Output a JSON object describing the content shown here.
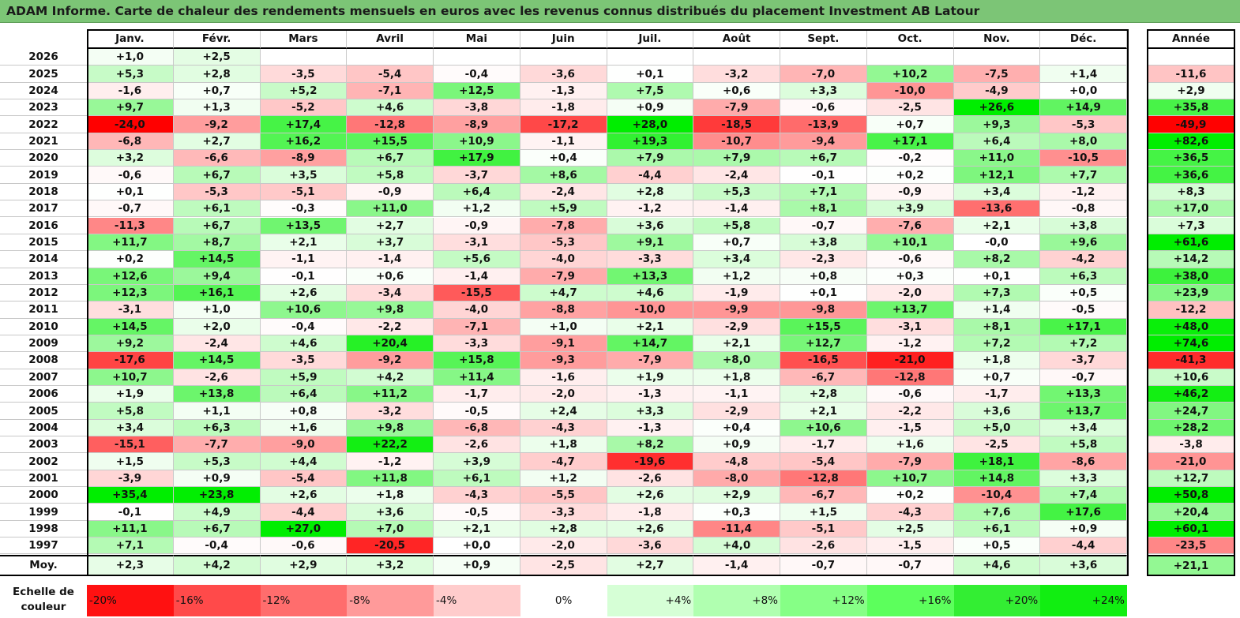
{
  "title": "ADAM Informe. Carte de chaleur des rendements mensuels en euros avec les revenus connus distribués du placement Investment AB Latour",
  "chart_data": {
    "type": "heatmap",
    "title": "ADAM Informe. Carte de chaleur des rendements mensuels en euros avec les revenus connus distribués du placement Investment AB Latour",
    "columns": [
      "Janv.",
      "Févr.",
      "Mars",
      "Avril",
      "Mai",
      "Juin",
      "Juil.",
      "Août",
      "Sept.",
      "Oct.",
      "Nov.",
      "Déc."
    ],
    "annual_header": "Année",
    "average_label": "Moy.",
    "rows": [
      {
        "year": "2026",
        "values": [
          "+1,0",
          "+2,5",
          "",
          "",
          "",
          "",
          "",
          "",
          "",
          "",
          "",
          ""
        ],
        "annual": ""
      },
      {
        "year": "2025",
        "values": [
          "+5,3",
          "+2,8",
          "-3,5",
          "-5,4",
          "-0,4",
          "-3,6",
          "+0,1",
          "-3,2",
          "-7,0",
          "+10,2",
          "-7,5",
          "+1,4"
        ],
        "annual": "-11,6"
      },
      {
        "year": "2024",
        "values": [
          "-1,6",
          "+0,7",
          "+5,2",
          "-7,1",
          "+12,5",
          "-1,3",
          "+7,5",
          "+0,6",
          "+3,3",
          "-10,0",
          "-4,9",
          "+0,0"
        ],
        "annual": "+2,9"
      },
      {
        "year": "2023",
        "values": [
          "+9,7",
          "+1,3",
          "-5,2",
          "+4,6",
          "-3,8",
          "-1,8",
          "+0,9",
          "-7,9",
          "-0,6",
          "-2,5",
          "+26,6",
          "+14,9"
        ],
        "annual": "+35,8"
      },
      {
        "year": "2022",
        "values": [
          "-24,0",
          "-9,2",
          "+17,4",
          "-12,8",
          "-8,9",
          "-17,2",
          "+28,0",
          "-18,5",
          "-13,9",
          "+0,7",
          "+9,3",
          "-5,3"
        ],
        "annual": "-49,9"
      },
      {
        "year": "2021",
        "values": [
          "-6,8",
          "+2,7",
          "+16,2",
          "+15,5",
          "+10,9",
          "-1,1",
          "+19,3",
          "-10,7",
          "-9,4",
          "+17,1",
          "+6,4",
          "+8,0"
        ],
        "annual": "+82,6"
      },
      {
        "year": "2020",
        "values": [
          "+3,2",
          "-6,6",
          "-8,9",
          "+6,7",
          "+17,9",
          "+0,4",
          "+7,9",
          "+7,9",
          "+6,7",
          "-0,2",
          "+11,0",
          "-10,5"
        ],
        "annual": "+36,5"
      },
      {
        "year": "2019",
        "values": [
          "-0,6",
          "+6,7",
          "+3,5",
          "+5,8",
          "-3,7",
          "+8,6",
          "-4,4",
          "-2,4",
          "-0,1",
          "+0,2",
          "+12,1",
          "+7,7"
        ],
        "annual": "+36,6"
      },
      {
        "year": "2018",
        "values": [
          "+0,1",
          "-5,3",
          "-5,1",
          "-0,9",
          "+6,4",
          "-2,4",
          "+2,8",
          "+5,3",
          "+7,1",
          "-0,9",
          "+3,4",
          "-1,2"
        ],
        "annual": "+8,3"
      },
      {
        "year": "2017",
        "values": [
          "-0,7",
          "+6,1",
          "-0,3",
          "+11,0",
          "+1,2",
          "+5,9",
          "-1,2",
          "-1,4",
          "+8,1",
          "+3,9",
          "-13,6",
          "-0,8"
        ],
        "annual": "+17,0"
      },
      {
        "year": "2016",
        "values": [
          "-11,3",
          "+6,7",
          "+13,5",
          "+2,7",
          "-0,9",
          "-7,8",
          "+3,6",
          "+5,8",
          "-0,7",
          "-7,6",
          "+2,1",
          "+3,8"
        ],
        "annual": "+7,3"
      },
      {
        "year": "2015",
        "values": [
          "+11,7",
          "+8,7",
          "+2,1",
          "+3,7",
          "-3,1",
          "-5,3",
          "+9,1",
          "+0,7",
          "+3,8",
          "+10,1",
          "-0,0",
          "+9,6"
        ],
        "annual": "+61,6"
      },
      {
        "year": "2014",
        "values": [
          "+0,2",
          "+14,5",
          "-1,1",
          "-1,4",
          "+5,6",
          "-4,0",
          "-3,3",
          "+3,4",
          "-2,3",
          "-0,6",
          "+8,2",
          "-4,2"
        ],
        "annual": "+14,2"
      },
      {
        "year": "2013",
        "values": [
          "+12,6",
          "+9,4",
          "-0,1",
          "+0,6",
          "-1,4",
          "-7,9",
          "+13,3",
          "+1,2",
          "+0,8",
          "+0,3",
          "+0,1",
          "+6,3"
        ],
        "annual": "+38,0"
      },
      {
        "year": "2012",
        "values": [
          "+12,3",
          "+16,1",
          "+2,6",
          "-3,4",
          "-15,5",
          "+4,7",
          "+4,6",
          "-1,9",
          "+0,1",
          "-2,0",
          "+7,3",
          "+0,5"
        ],
        "annual": "+23,9"
      },
      {
        "year": "2011",
        "values": [
          "-3,1",
          "+1,0",
          "+10,6",
          "+9,8",
          "-4,0",
          "-8,8",
          "-10,0",
          "-9,9",
          "-9,8",
          "+13,7",
          "+1,4",
          "-0,5"
        ],
        "annual": "-12,2"
      },
      {
        "year": "2010",
        "values": [
          "+14,5",
          "+2,0",
          "-0,4",
          "-2,2",
          "-7,1",
          "+1,0",
          "+2,1",
          "-2,9",
          "+15,5",
          "-3,1",
          "+8,1",
          "+17,1"
        ],
        "annual": "+48,0"
      },
      {
        "year": "2009",
        "values": [
          "+9,2",
          "-2,4",
          "+4,6",
          "+20,4",
          "-3,3",
          "-9,1",
          "+14,7",
          "+2,1",
          "+12,7",
          "-1,2",
          "+7,2",
          "+7,2"
        ],
        "annual": "+74,6"
      },
      {
        "year": "2008",
        "values": [
          "-17,6",
          "+14,5",
          "-3,5",
          "-9,2",
          "+15,8",
          "-9,3",
          "-7,9",
          "+8,0",
          "-16,5",
          "-21,0",
          "+1,8",
          "-3,7"
        ],
        "annual": "-41,3"
      },
      {
        "year": "2007",
        "values": [
          "+10,7",
          "-2,6",
          "+5,9",
          "+4,2",
          "+11,4",
          "-1,6",
          "+1,9",
          "+1,8",
          "-6,7",
          "-12,8",
          "+0,7",
          "-0,7"
        ],
        "annual": "+10,6"
      },
      {
        "year": "2006",
        "values": [
          "+1,9",
          "+13,8",
          "+6,4",
          "+11,2",
          "-1,7",
          "-2,0",
          "-1,3",
          "-1,1",
          "+2,8",
          "-0,6",
          "-1,7",
          "+13,3"
        ],
        "annual": "+46,2"
      },
      {
        "year": "2005",
        "values": [
          "+5,8",
          "+1,1",
          "+0,8",
          "-3,2",
          "-0,5",
          "+2,4",
          "+3,3",
          "-2,9",
          "+2,1",
          "-2,2",
          "+3,6",
          "+13,7"
        ],
        "annual": "+24,7"
      },
      {
        "year": "2004",
        "values": [
          "+3,4",
          "+6,3",
          "+1,6",
          "+9,8",
          "-6,8",
          "-4,3",
          "-1,3",
          "+0,4",
          "+10,6",
          "-1,5",
          "+5,0",
          "+3,4"
        ],
        "annual": "+28,2"
      },
      {
        "year": "2003",
        "values": [
          "-15,1",
          "-7,7",
          "-9,0",
          "+22,2",
          "-2,6",
          "+1,8",
          "+8,2",
          "+0,9",
          "-1,7",
          "+1,6",
          "-2,5",
          "+5,8"
        ],
        "annual": "-3,8"
      },
      {
        "year": "2002",
        "values": [
          "+1,5",
          "+5,3",
          "+4,4",
          "-1,2",
          "+3,9",
          "-4,7",
          "-19,6",
          "-4,8",
          "-5,4",
          "-7,9",
          "+18,1",
          "-8,6"
        ],
        "annual": "-21,0"
      },
      {
        "year": "2001",
        "values": [
          "-3,9",
          "+0,9",
          "-5,4",
          "+11,8",
          "+6,1",
          "+1,2",
          "-2,6",
          "-8,0",
          "-12,8",
          "+10,7",
          "+14,8",
          "+3,3"
        ],
        "annual": "+12,7"
      },
      {
        "year": "2000",
        "values": [
          "+35,4",
          "+23,8",
          "+2,6",
          "+1,8",
          "-4,3",
          "-5,5",
          "+2,6",
          "+2,9",
          "-6,7",
          "+0,2",
          "-10,4",
          "+7,4"
        ],
        "annual": "+50,8"
      },
      {
        "year": "1999",
        "values": [
          "-0,1",
          "+4,9",
          "-4,4",
          "+3,6",
          "-0,5",
          "-3,3",
          "-1,8",
          "+0,3",
          "+1,5",
          "-4,3",
          "+7,6",
          "+17,6"
        ],
        "annual": "+20,4"
      },
      {
        "year": "1998",
        "values": [
          "+11,1",
          "+6,7",
          "+27,0",
          "+7,0",
          "+2,1",
          "+2,8",
          "+2,6",
          "-11,4",
          "-5,1",
          "+2,5",
          "+6,1",
          "+0,9"
        ],
        "annual": "+60,1"
      },
      {
        "year": "1997",
        "values": [
          "+7,1",
          "-0,4",
          "-0,6",
          "-20,5",
          "+0,0",
          "-2,0",
          "-3,6",
          "+4,0",
          "-2,6",
          "-1,5",
          "+0,5",
          "-4,4"
        ],
        "annual": "-23,5"
      }
    ],
    "average": {
      "values": [
        "+2,3",
        "+4,2",
        "+2,9",
        "+3,2",
        "+0,9",
        "-2,5",
        "+2,7",
        "-1,4",
        "-0,7",
        "-0,7",
        "+4,6",
        "+3,6"
      ],
      "annual": "+21,1"
    },
    "scale": {
      "label_line1": "Echelle de",
      "label_line2": "couleur",
      "steps": [
        {
          "label": "-20%",
          "value": -20,
          "color": "#ff1111"
        },
        {
          "label": "-16%",
          "value": -16,
          "color": "#ff4a4a"
        },
        {
          "label": "-12%",
          "value": -12,
          "color": "#ff6d6d"
        },
        {
          "label": "-8%",
          "value": -8,
          "color": "#ff9a9a"
        },
        {
          "label": "-4%",
          "value": -4,
          "color": "#ffcccc"
        },
        {
          "label": "0%",
          "value": 0,
          "color": "#ffffff"
        },
        {
          "label": "+4%",
          "value": 4,
          "color": "#d6ffd6"
        },
        {
          "label": "+8%",
          "value": 8,
          "color": "#b0ffb0"
        },
        {
          "label": "+12%",
          "value": 12,
          "color": "#86ff86"
        },
        {
          "label": "+16%",
          "value": 16,
          "color": "#5cff5c"
        },
        {
          "label": "+20%",
          "value": 20,
          "color": "#33ee33"
        },
        {
          "label": "+24%",
          "value": 24,
          "color": "#11ee11"
        }
      ]
    }
  },
  "colors": {
    "title_bar": "#7cc576",
    "negative_max": "#ff0000",
    "positive_max": "#00dd00",
    "neutral": "#ffffff"
  }
}
